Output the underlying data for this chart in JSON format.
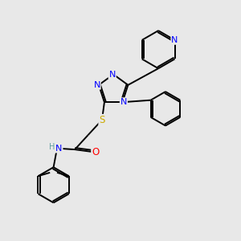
{
  "background_color": "#e8e8e8",
  "bond_color": "#000000",
  "atom_colors": {
    "N": "#0000ff",
    "O": "#ff0000",
    "S": "#ccaa00",
    "H": "#5f9ea0",
    "C": "#000000"
  },
  "figsize": [
    3.0,
    3.0
  ],
  "dpi": 100
}
